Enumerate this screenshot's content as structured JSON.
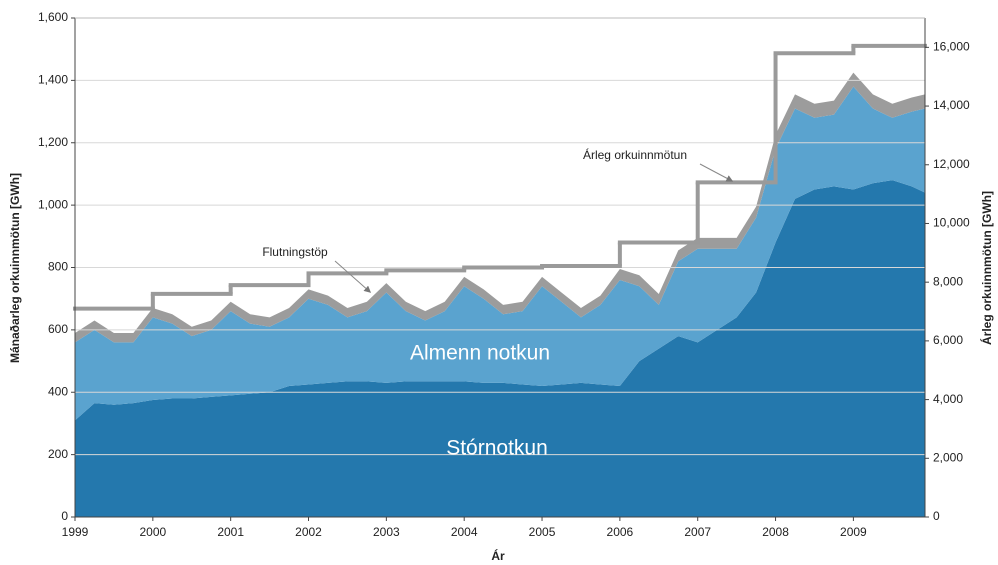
{
  "chart_data": {
    "type": "area",
    "x_label": "Ár",
    "y_label": "Mánaðarleg orkuinnmötun [GWh]",
    "y2_label": "Árleg orkuinnmötun [GWh]",
    "x": [
      1999,
      1999.25,
      1999.5,
      1999.75,
      2000,
      2000.25,
      2000.5,
      2000.75,
      2001,
      2001.25,
      2001.5,
      2001.75,
      2002,
      2002.25,
      2002.5,
      2002.75,
      2003,
      2003.25,
      2003.5,
      2003.75,
      2004,
      2004.25,
      2004.5,
      2004.75,
      2005,
      2005.25,
      2005.5,
      2005.75,
      2006,
      2006.25,
      2006.5,
      2006.75,
      2007,
      2007.25,
      2007.5,
      2007.75,
      2008,
      2008.25,
      2008.5,
      2008.75,
      2009,
      2009.25,
      2009.5,
      2009.75,
      2009.92
    ],
    "series": [
      {
        "name": "Stórnotkun",
        "color": "#2478ad",
        "values": [
          310,
          365,
          360,
          365,
          375,
          380,
          380,
          385,
          390,
          395,
          400,
          420,
          425,
          430,
          435,
          435,
          430,
          435,
          435,
          435,
          435,
          430,
          430,
          425,
          420,
          425,
          430,
          425,
          420,
          500,
          540,
          580,
          560,
          600,
          640,
          720,
          880,
          1020,
          1050,
          1060,
          1050,
          1070,
          1080,
          1060,
          1040
        ]
      },
      {
        "name": "Almenn notkun",
        "color": "#5aa3cf",
        "values": [
          250,
          235,
          200,
          195,
          265,
          240,
          200,
          215,
          270,
          225,
          210,
          220,
          275,
          250,
          205,
          225,
          290,
          225,
          195,
          225,
          305,
          270,
          220,
          235,
          320,
          265,
          210,
          255,
          340,
          240,
          140,
          240,
          300,
          260,
          220,
          240,
          300,
          290,
          230,
          230,
          330,
          240,
          200,
          240,
          270
        ]
      },
      {
        "name": "Flutningstöp",
        "color": "#9c9c9c",
        "values": [
          30,
          30,
          30,
          30,
          30,
          30,
          30,
          30,
          30,
          30,
          30,
          30,
          30,
          30,
          30,
          30,
          30,
          30,
          30,
          30,
          30,
          30,
          30,
          30,
          30,
          30,
          30,
          30,
          35,
          35,
          35,
          35,
          35,
          35,
          35,
          35,
          45,
          45,
          45,
          45,
          45,
          45,
          45,
          45,
          45
        ]
      },
      {
        "name": "Árleg orkuinnmötun",
        "color": "#9a9a9a",
        "type": "step",
        "axis": "y2",
        "x": [
          1999,
          2000,
          2001,
          2002,
          2003,
          2004,
          2005,
          2006,
          2007,
          2008,
          2009
        ],
        "values": [
          7100,
          7600,
          7900,
          8300,
          8400,
          8500,
          8550,
          9350,
          11400,
          15800,
          16050
        ]
      }
    ],
    "xlim": [
      1999,
      2009.92
    ],
    "xticks": [
      1999,
      2000,
      2001,
      2002,
      2003,
      2004,
      2005,
      2006,
      2007,
      2008,
      2009
    ],
    "ylim": [
      0,
      1600
    ],
    "yticks": [
      0,
      200,
      400,
      600,
      800,
      {
        "value": 1000,
        "label": "1,000"
      },
      {
        "value": 1200,
        "label": "1,200"
      },
      {
        "value": 1400,
        "label": "1,400"
      },
      {
        "value": 1600,
        "label": "1,600"
      }
    ],
    "y2lim": [
      0,
      17000
    ],
    "y2ticks": [
      0,
      {
        "value": 2000,
        "label": "2,000"
      },
      {
        "value": 4000,
        "label": "4,000"
      },
      {
        "value": 6000,
        "label": "6,000"
      },
      {
        "value": 8000,
        "label": "8,000"
      },
      {
        "value": 10000,
        "label": "10,000"
      },
      {
        "value": 12000,
        "label": "12,000"
      },
      {
        "value": 14000,
        "label": "14,000"
      },
      {
        "value": 16000,
        "label": "16,000"
      }
    ],
    "grid": true
  }
}
